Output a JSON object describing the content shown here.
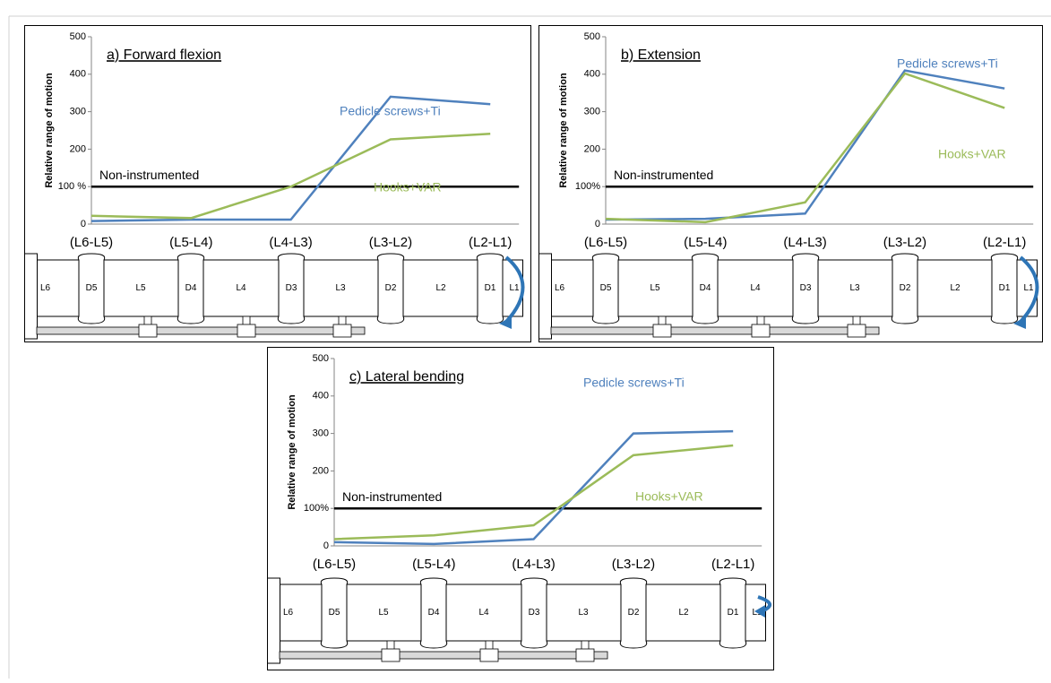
{
  "chart_data": [
    {
      "type": "line",
      "title": "a) Forward flexion",
      "ylabel": "Relative range of motion",
      "categories": [
        "(L6-L5)",
        "(L5-L4)",
        "(L4-L3)",
        "(L3-L2)",
        "(L2-L1)"
      ],
      "series": [
        {
          "name": "Pedicle screws+Ti",
          "color": "#4f81bd",
          "values": [
            8,
            12,
            12,
            340,
            320
          ]
        },
        {
          "name": "Hooks+VAR",
          "color": "#9bbb59",
          "values": [
            22,
            16,
            100,
            226,
            241
          ]
        }
      ],
      "ylim": [
        0,
        500
      ],
      "yticks": [
        0,
        {
          "value": 100,
          "label": "100 %"
        },
        200,
        300,
        400,
        500
      ],
      "reference_line": {
        "value": 100,
        "label": "Non-instrumented",
        "color": "#000000"
      },
      "spine_labels": [
        "L6",
        "D5",
        "L5",
        "D4",
        "L4",
        "D3",
        "L3",
        "D2",
        "L2",
        "D1",
        "L1"
      ]
    },
    {
      "type": "line",
      "title": "b) Extension",
      "ylabel": "Relative range of motion",
      "categories": [
        "(L6-L5)",
        "(L5-L4)",
        "(L4-L3)",
        "(L3-L2)",
        "(L2-L1)"
      ],
      "series": [
        {
          "name": "Pedicle screws+Ti",
          "color": "#4f81bd",
          "values": [
            12,
            14,
            28,
            410,
            362
          ]
        },
        {
          "name": "Hooks+VAR",
          "color": "#9bbb59",
          "values": [
            14,
            5,
            58,
            402,
            310
          ]
        }
      ],
      "ylim": [
        0,
        500
      ],
      "yticks": [
        0,
        {
          "value": 100,
          "label": "100%"
        },
        200,
        300,
        400,
        500
      ],
      "reference_line": {
        "value": 100,
        "label": "Non-instrumented",
        "color": "#000000"
      },
      "spine_labels": [
        "L6",
        "D5",
        "L5",
        "D4",
        "L4",
        "D3",
        "L3",
        "D2",
        "L2",
        "D1",
        "L1"
      ]
    },
    {
      "type": "line",
      "title": "c) Lateral bending",
      "ylabel": "Relative range of motion",
      "categories": [
        "(L6-L5)",
        "(L5-L4)",
        "(L4-L3)",
        "(L3-L2)",
        "(L2-L1)"
      ],
      "series": [
        {
          "name": "Pedicle screws+Ti",
          "color": "#4f81bd",
          "values": [
            10,
            5,
            18,
            300,
            306
          ]
        },
        {
          "name": "Hooks+VAR",
          "color": "#9bbb59",
          "values": [
            18,
            28,
            55,
            242,
            268
          ]
        }
      ],
      "ylim": [
        0,
        500
      ],
      "yticks": [
        0,
        {
          "value": 100,
          "label": "100%"
        },
        200,
        300,
        400,
        500
      ],
      "reference_line": {
        "value": 100,
        "label": "Non-instrumented",
        "color": "#000000"
      },
      "spine_labels": [
        "L6",
        "D5",
        "L5",
        "D4",
        "L4",
        "D3",
        "L3",
        "D2",
        "L2",
        "D1",
        "L1"
      ]
    }
  ]
}
